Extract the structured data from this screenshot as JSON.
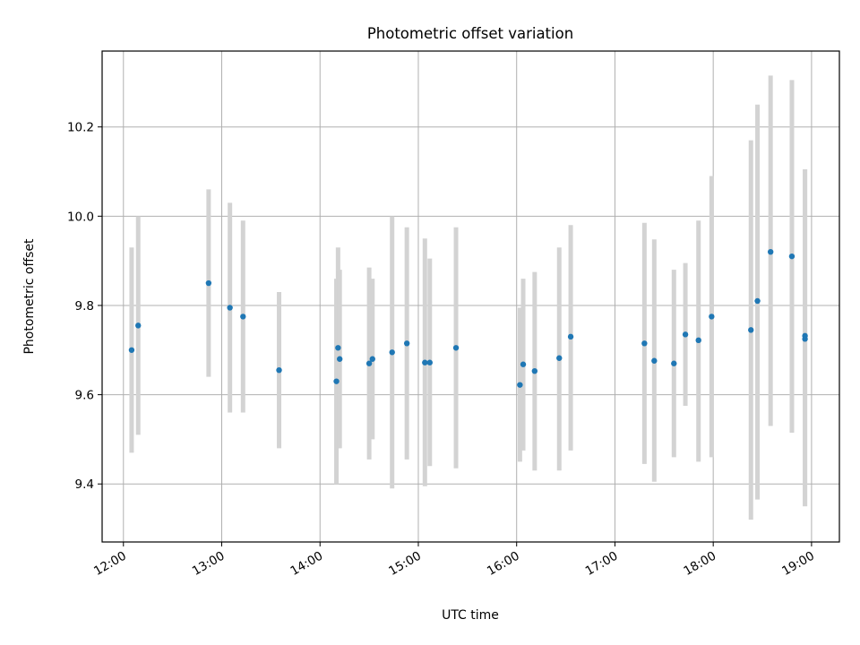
{
  "chart_data": {
    "type": "scatter",
    "title": "Photometric offset variation",
    "xlabel": "UTC time",
    "ylabel": "Photometric offset",
    "xlim": [
      "11:47",
      "19:17"
    ],
    "ylim": [
      9.27,
      10.37
    ],
    "grid": true,
    "colors": {
      "point": "#1f77b4",
      "errorbar": "#d3d3d3",
      "grid": "#b0b0b0"
    },
    "x_ticks": [
      "12:00",
      "13:00",
      "14:00",
      "15:00",
      "16:00",
      "17:00",
      "18:00",
      "19:00"
    ],
    "y_ticks": [
      9.4,
      9.6,
      9.8,
      10.0,
      10.2
    ],
    "y_tick_labels": [
      "9.4",
      "9.6",
      "9.8",
      "10.0",
      "10.2"
    ],
    "series": [
      {
        "points": [
          {
            "x": "12:05",
            "y": 9.7,
            "yerr_low": 9.47,
            "yerr_high": 9.93
          },
          {
            "x": "12:09",
            "y": 9.755,
            "yerr_low": 9.51,
            "yerr_high": 10.0
          },
          {
            "x": "12:52",
            "y": 9.85,
            "yerr_low": 9.64,
            "yerr_high": 10.06
          },
          {
            "x": "13:05",
            "y": 9.795,
            "yerr_low": 9.56,
            "yerr_high": 10.03
          },
          {
            "x": "13:13",
            "y": 9.775,
            "yerr_low": 9.56,
            "yerr_high": 9.99
          },
          {
            "x": "13:35",
            "y": 9.655,
            "yerr_low": 9.48,
            "yerr_high": 9.83
          },
          {
            "x": "14:10",
            "y": 9.63,
            "yerr_low": 9.4,
            "yerr_high": 9.86
          },
          {
            "x": "14:11",
            "y": 9.705,
            "yerr_low": 9.48,
            "yerr_high": 9.93
          },
          {
            "x": "14:12",
            "y": 9.68,
            "yerr_low": 9.48,
            "yerr_high": 9.88
          },
          {
            "x": "14:30",
            "y": 9.67,
            "yerr_low": 9.455,
            "yerr_high": 9.885
          },
          {
            "x": "14:32",
            "y": 9.68,
            "yerr_low": 9.5,
            "yerr_high": 9.86
          },
          {
            "x": "14:44",
            "y": 9.695,
            "yerr_low": 9.39,
            "yerr_high": 10.0
          },
          {
            "x": "14:53",
            "y": 9.715,
            "yerr_low": 9.455,
            "yerr_high": 9.975
          },
          {
            "x": "15:04",
            "y": 9.672,
            "yerr_low": 9.395,
            "yerr_high": 9.95
          },
          {
            "x": "15:07",
            "y": 9.672,
            "yerr_low": 9.44,
            "yerr_high": 9.905
          },
          {
            "x": "15:23",
            "y": 9.705,
            "yerr_low": 9.435,
            "yerr_high": 9.975
          },
          {
            "x": "16:02",
            "y": 9.622,
            "yerr_low": 9.45,
            "yerr_high": 9.795
          },
          {
            "x": "16:04",
            "y": 9.668,
            "yerr_low": 9.475,
            "yerr_high": 9.86
          },
          {
            "x": "16:11",
            "y": 9.653,
            "yerr_low": 9.43,
            "yerr_high": 9.875
          },
          {
            "x": "16:26",
            "y": 9.682,
            "yerr_low": 9.43,
            "yerr_high": 9.93
          },
          {
            "x": "16:33",
            "y": 9.73,
            "yerr_low": 9.475,
            "yerr_high": 9.98
          },
          {
            "x": "17:18",
            "y": 9.715,
            "yerr_low": 9.445,
            "yerr_high": 9.985
          },
          {
            "x": "17:24",
            "y": 9.676,
            "yerr_low": 9.405,
            "yerr_high": 9.948
          },
          {
            "x": "17:36",
            "y": 9.67,
            "yerr_low": 9.46,
            "yerr_high": 9.88
          },
          {
            "x": "17:43",
            "y": 9.735,
            "yerr_low": 9.575,
            "yerr_high": 9.895
          },
          {
            "x": "17:51",
            "y": 9.722,
            "yerr_low": 9.45,
            "yerr_high": 9.99
          },
          {
            "x": "17:59",
            "y": 9.775,
            "yerr_low": 9.46,
            "yerr_high": 10.09
          },
          {
            "x": "18:23",
            "y": 9.745,
            "yerr_low": 9.32,
            "yerr_high": 10.17
          },
          {
            "x": "18:27",
            "y": 9.81,
            "yerr_low": 9.365,
            "yerr_high": 10.25
          },
          {
            "x": "18:35",
            "y": 9.92,
            "yerr_low": 9.53,
            "yerr_high": 10.315
          },
          {
            "x": "18:48",
            "y": 9.91,
            "yerr_low": 9.515,
            "yerr_high": 10.305
          },
          {
            "x": "18:56",
            "y": 9.725,
            "yerr_low": 9.35,
            "yerr_high": 10.105
          },
          {
            "x": "18:56",
            "y": 9.732,
            "yerr_low": 9.35,
            "yerr_high": 10.105
          }
        ]
      }
    ]
  }
}
